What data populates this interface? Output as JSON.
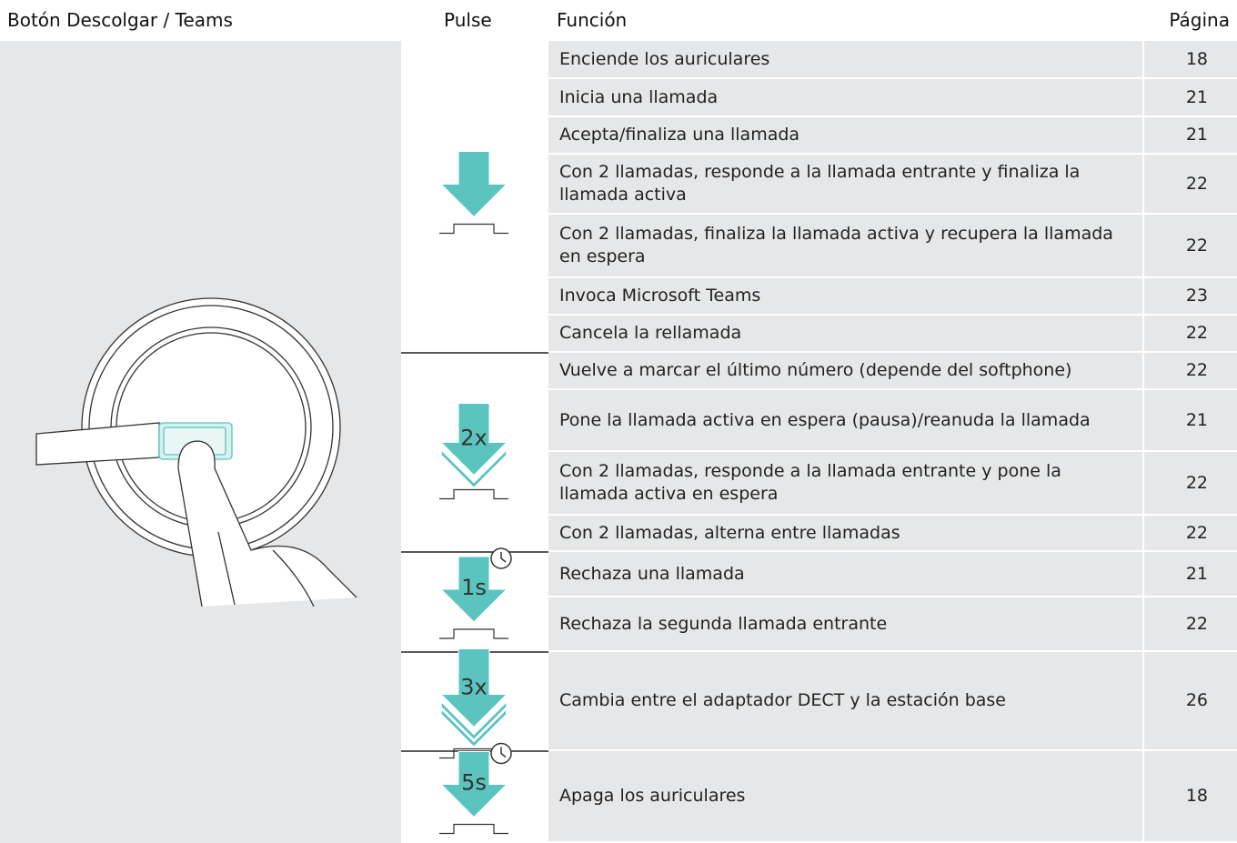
{
  "header": {
    "button": "Botón Descolgar / Teams",
    "pulse": "Pulse",
    "function": "Función",
    "page": "Página"
  },
  "groups": [
    {
      "rows": [
        {
          "function": "Enciende los auriculares",
          "page": 18
        },
        {
          "function": "Inicia una llamada",
          "page": 21
        },
        {
          "function": "Acepta/finaliza una llamada",
          "page": 21
        },
        {
          "function": "Con 2 llamadas, responde a la llamada entrante y finaliza la llamada activa",
          "page": 22
        },
        {
          "function": "Con 2 llamadas, finaliza la llamada activa y recupera la llamada en espera",
          "page": 22
        },
        {
          "function": "Invoca Microsoft Teams",
          "page": 23
        },
        {
          "function": "Cancela la rellamada",
          "page": 22
        }
      ]
    },
    {
      "pulse_label": "2x",
      "rows": [
        {
          "function": "Vuelve a marcar el último número (depende del softphone)",
          "page": 22
        },
        {
          "function": "Pone la llamada activa en espera (pausa)/reanuda la llamada",
          "page": 21
        },
        {
          "function": "Con 2 llamadas, responde a la llamada entrante y pone la llamada activa en espera",
          "page": 22
        },
        {
          "function": "Con 2 llamadas, alterna entre llamadas",
          "page": 22
        }
      ]
    },
    {
      "pulse_label": "1s",
      "rows": [
        {
          "function": "Rechaza una llamada",
          "page": 21
        },
        {
          "function": "Rechaza la segunda llamada entrante",
          "page": 22
        }
      ]
    },
    {
      "pulse_label": "3x",
      "rows": [
        {
          "function": "Cambia entre el adaptador DECT y la estación base",
          "page": 26
        }
      ]
    },
    {
      "pulse_label": "5s",
      "rows": [
        {
          "function": "Apaga los auriculares",
          "page": 18
        }
      ]
    }
  ]
}
